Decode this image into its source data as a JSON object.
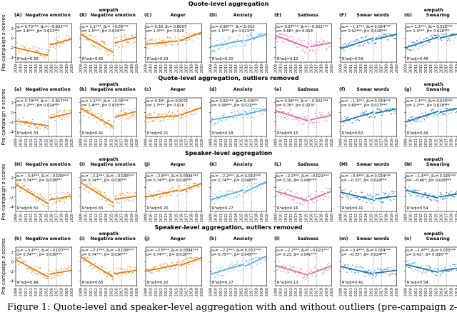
{
  "colors": {
    "orange": "#E07D10",
    "blue": "#1F77B4",
    "light_blue": "#5DADE2",
    "pink": "#D66FA6",
    "grey_marks": "#333333"
  },
  "figure": {
    "y_axis_label": "Pre-campaign z-scores",
    "x_ticks": [
      "2009",
      "2010",
      "2011",
      "2012",
      "2013",
      "2014",
      "2015",
      "2016",
      "2017",
      "2018",
      "2019",
      "2020"
    ],
    "y_ticks": [
      "2",
      "0",
      "-2",
      "-4"
    ],
    "campaign_line_x": 2015.5,
    "caption": "Figure 1: Quote-level and speaker-level aggregation with and without outliers (pre-campaign z-scores)..."
  },
  "chart_data": [
    {
      "title": "Quote-level aggregation",
      "panels": [
        {
          "letter": "(A)",
          "category": "Negative emotion",
          "lexicon": "",
          "color": "#E07D10",
          "ann1": "α₀= 0.73***, β₀= −0.023***",
          "ann2": "α= 1.6***, β= 0.031***",
          "r2": "R²adj=0.30",
          "pre": [
            -2.0,
            -3.6
          ],
          "post": [
            -1.4,
            -0.2
          ],
          "spread": 1.6
        },
        {
          "letter": "(B)",
          "category": "Negative emotion",
          "lexicon": "empath",
          "color": "#E07D10",
          "ann1": "α₀= 1.1***, β₀= −0.03***",
          "ann2": "α= 1.5***, β= 0.034***",
          "r2": "R²adj=0.40",
          "pre": [
            0.8,
            -3.0
          ],
          "post": [
            -1.0,
            0.2
          ],
          "spread": 1.5
        },
        {
          "letter": "(C)",
          "category": "Anger",
          "lexicon": "",
          "color": "#E07D10",
          "ann1": "α₀= 0.39, β₀= 0.0097",
          "ann2": "α= 1.3***, β= 0.020",
          "r2": "R²adj=0.23",
          "pre": [
            -1.3,
            -0.6
          ],
          "post": [
            -0.6,
            1.2
          ],
          "spread": 1.3
        },
        {
          "letter": "(D)",
          "category": "Anxiety",
          "lexicon": "",
          "color": "#5DADE2",
          "ann1": "α₀= 0.90***, β₀= 0.013",
          "ann2": "α= 1.5***, β= 0.023***",
          "r2": "R²adj=0.20",
          "pre": [
            -1.8,
            -0.5
          ],
          "post": [
            -0.6,
            0.8
          ],
          "spread": 1.5
        },
        {
          "letter": "(E)",
          "category": "Sadness",
          "lexicon": "",
          "color": "#D66FA6",
          "ann1": "α₀= 0.87***, β₀= −0.022***",
          "ann2": "α= 0.86*, β= 0.018",
          "r2": "R²adj=0.12",
          "pre": [
            0.5,
            -2.0
          ],
          "post": [
            -1.8,
            -1.0
          ],
          "spread": 1.7
        },
        {
          "letter": "(F)",
          "category": "Swear words",
          "lexicon": "",
          "color": "#1F77B4",
          "ann1": "α₀= −1.1***, β₀= 0.024***",
          "ann2": "α= 0.92***, β= 0.028***",
          "r2": "R²adj=0.59",
          "pre": [
            -2.2,
            0.0
          ],
          "post": [
            -0.3,
            0.8
          ],
          "spread": 1.2
        },
        {
          "letter": "(G)",
          "category": "Swearing",
          "lexicon": "empath",
          "color": "#1F77B4",
          "ann1": "α₀= 1.3***, β₀= 0.025***",
          "ann2": "α= 1.4***, β= 0.028***",
          "r2": "R²adj=0.49",
          "pre": [
            -2.0,
            0.2
          ],
          "post": [
            0.0,
            1.0
          ],
          "spread": 1.2
        }
      ]
    },
    {
      "title": "Quote-level aggregation, outliers removed",
      "panels": [
        {
          "letter": "(a)",
          "category": "Negative emotion",
          "lexicon": "",
          "color": "#E07D10",
          "ann1": "α₀= 0.79***, β₀= −0.017***",
          "ann2": "α= 1.2***, β= 0.024***",
          "r2": "R²adj=0.33",
          "pre": [
            -1.8,
            -2.8
          ],
          "post": [
            -1.2,
            -0.1
          ],
          "spread": 1.3
        },
        {
          "letter": "(b)",
          "category": "Negative emotion",
          "lexicon": "empath",
          "color": "#E07D10",
          "ann1": "α₀= 1.1***, β₀= −0.03***",
          "ann2": "α= 1.4***, β= 0.035***",
          "r2": "R²adj=0.41",
          "pre": [
            0.8,
            -3.0
          ],
          "post": [
            -1.0,
            0.2
          ],
          "spread": 1.4
        },
        {
          "letter": "(c)",
          "category": "Anger",
          "lexicon": "",
          "color": "#E07D10",
          "ann1": "α₀= 0.39*, β₀= 0.0071",
          "ann2": "α= 1.3***, β= 0.016",
          "r2": "R²adj=0.21",
          "pre": [
            -1.2,
            -0.7
          ],
          "post": [
            -0.6,
            1.0
          ],
          "spread": 1.2
        },
        {
          "letter": "(d)",
          "category": "Anxiety",
          "lexicon": "",
          "color": "#5DADE2",
          "ann1": "α₀= 0.82***, β₀= 0.016**",
          "ann2": "α= 0.99***, β= 0.021***",
          "r2": "R²adj=0.18",
          "pre": [
            -1.6,
            -0.4
          ],
          "post": [
            -0.5,
            0.7
          ],
          "spread": 1.3
        },
        {
          "letter": "(e)",
          "category": "Sadness",
          "lexicon": "",
          "color": "#D66FA6",
          "ann1": "α₀= 0.94***, β₀= −0.022***",
          "ann2": "α= 0.76*, β= 0.023*",
          "r2": "R²adj=0.15",
          "pre": [
            0.4,
            -1.8
          ],
          "post": [
            -1.6,
            -0.6
          ],
          "spread": 1.5
        },
        {
          "letter": "(f)",
          "category": "Swear words",
          "lexicon": "",
          "color": "#1F77B4",
          "ann1": "α₀= −1.1***, β₀= 0.024***",
          "ann2": "α= 0.69***, β= 0.027***",
          "r2": "R²adj=0.62",
          "pre": [
            -2.0,
            0.0
          ],
          "post": [
            -0.2,
            0.7
          ],
          "spread": 1.1
        },
        {
          "letter": "(g)",
          "category": "Swearing",
          "lexicon": "empath",
          "color": "#1F77B4",
          "ann1": "α₀= 1.3***, β₀= 0.025***",
          "ann2": "α= 1.2***, β= 0.028***",
          "r2": "R²adj=0.49",
          "pre": [
            -2.0,
            0.2
          ],
          "post": [
            0.0,
            1.0
          ],
          "spread": 1.1
        }
      ]
    },
    {
      "title": "Speaker-level aggregation",
      "panels": [
        {
          "letter": "(H)",
          "category": "Negative emotion",
          "lexicon": "",
          "color": "#E07D10",
          "ann1": "α₀= −3.4***, β₀= −0.039***",
          "ann2": "α= 0.74***, β= 0.038***",
          "r2": "R²adj=0.50",
          "pre": [
            0.6,
            -3.4
          ],
          "post": [
            -2.6,
            -1.8
          ],
          "spread": 1.4
        },
        {
          "letter": "(I)",
          "category": "Negative emotion",
          "lexicon": "empath",
          "color": "#E07D10",
          "ann1": "α₀= −2.1***, β₀= −0.036***",
          "ann2": "α= 0.74***, β= 0.036***",
          "r2": "R²adj=0.65",
          "pre": [
            1.0,
            -3.2
          ],
          "post": [
            -2.5,
            -1.8
          ],
          "spread": 1.3
        },
        {
          "letter": "(J)",
          "category": "Anger",
          "lexicon": "",
          "color": "#E07D10",
          "ann1": "α₀= −2.8***, β₀= 0.0094***",
          "ann2": "α= 0.74***, β= 0.016***",
          "r2": "R²adj=0.20",
          "pre": [
            -2.0,
            -0.6
          ],
          "post": [
            -0.8,
            0.8
          ],
          "spread": 1.2
        },
        {
          "letter": "(K)",
          "category": "Anxiety",
          "lexicon": "",
          "color": "#5DADE2",
          "ann1": "α₀= −2.2***, β₀= 0.022***",
          "ann2": "α= 0.74***, β= 0.048***",
          "r2": "R²adj=0.27",
          "pre": [
            -2.6,
            -0.6
          ],
          "post": [
            -1.0,
            1.2
          ],
          "spread": 1.4
        },
        {
          "letter": "(L)",
          "category": "Sadness",
          "lexicon": "",
          "color": "#D66FA6",
          "ann1": "α₀= −2.2***, β₀= −0.021***",
          "ann2": "α= 0.30, β= 0.045***",
          "r2": "R²adj=0.16",
          "pre": [
            -0.8,
            -2.8
          ],
          "post": [
            -2.6,
            -0.8
          ],
          "spread": 1.5
        },
        {
          "letter": "(M)",
          "category": "Swear words",
          "lexicon": "",
          "color": "#1F77B4",
          "ann1": "α₀= −3.4***, β₀= 0.024***",
          "ann2": "α= −0.33*, β= 0.024***",
          "r2": "R²adj=0.41",
          "pre": [
            -1.0,
            -2.6
          ],
          "post": [
            -2.4,
            -1.8
          ],
          "spread": 1.3
        },
        {
          "letter": "(N)",
          "category": "Swearing",
          "lexicon": "empath",
          "color": "#1F77B4",
          "ann1": "α₀= −1.4***, β₀= 0.025***",
          "ann2": "α= −0.46*, β= 0.026***",
          "r2": "R²adj=0.54",
          "pre": [
            -0.6,
            -2.2
          ],
          "post": [
            -2.0,
            -1.2
          ],
          "spread": 1.2
        }
      ]
    },
    {
      "title": "Speaker-level aggregation, outliers removed",
      "panels": [
        {
          "letter": "(h)",
          "category": "Negative emotion",
          "lexicon": "",
          "color": "#E07D10",
          "ann1": "α₀= −3.4***, β₀= −0.027***",
          "ann2": "α= 0.74***, β= 0.036***",
          "r2": "R²adj=0.49",
          "pre": [
            0.4,
            -3.2
          ],
          "post": [
            -2.6,
            -1.8
          ],
          "spread": 1.3
        },
        {
          "letter": "(i)",
          "category": "Negative emotion",
          "lexicon": "empath",
          "color": "#E07D10",
          "ann1": "α₀= −2.1***, β₀= −0.036***",
          "ann2": "α= 0.74***, β= 0.036***",
          "r2": "R²adj=0.65",
          "pre": [
            1.0,
            -3.2
          ],
          "post": [
            -2.5,
            -1.8
          ],
          "spread": 1.3
        },
        {
          "letter": "(j)",
          "category": "Anger",
          "lexicon": "",
          "color": "#E07D10",
          "ann1": "α₀= −2.8***, β₀= 0.0094***",
          "ann2": "α= 0.74***, β= 0.016***",
          "r2": "R²adj=0.20",
          "pre": [
            -2.0,
            -0.6
          ],
          "post": [
            -0.8,
            0.8
          ],
          "spread": 1.2
        },
        {
          "letter": "(k)",
          "category": "Anxiety",
          "lexicon": "",
          "color": "#5DADE2",
          "ann1": "α₀= −2.2***, β₀= 0.022***",
          "ann2": "α= 0.75***, β= 0.045***",
          "r2": "R²adj=0.27",
          "pre": [
            -2.6,
            -0.6
          ],
          "post": [
            -1.0,
            1.2
          ],
          "spread": 1.3
        },
        {
          "letter": "(l)",
          "category": "Sadness",
          "lexicon": "",
          "color": "#D66FA6",
          "ann1": "α₀= −2.2***, β₀= −0.021***",
          "ann2": "α= 0.23, β= 0.041***",
          "r2": "R²adj=0.13",
          "pre": [
            -0.8,
            -2.8
          ],
          "post": [
            -2.6,
            -0.8
          ],
          "spread": 1.4
        },
        {
          "letter": "(m)",
          "category": "Swear words",
          "lexicon": "",
          "color": "#1F77B4",
          "ann1": "α₀= −3.4***, β₀= 0.024***",
          "ann2": "α= −0.33*, β= 0.024***",
          "r2": "R²adj=0.41",
          "pre": [
            -1.0,
            -2.6
          ],
          "post": [
            -2.4,
            -1.8
          ],
          "spread": 1.2
        },
        {
          "letter": "(n)",
          "category": "Swearing",
          "lexicon": "empath",
          "color": "#1F77B4",
          "ann1": "α₀= −1.4***, β₀= 0.025***",
          "ann2": "α= 0.41*, β= 0.036***",
          "r2": "R²adj=0.54",
          "pre": [
            -0.6,
            -2.2
          ],
          "post": [
            -2.0,
            -1.2
          ],
          "spread": 1.2
        }
      ]
    }
  ]
}
